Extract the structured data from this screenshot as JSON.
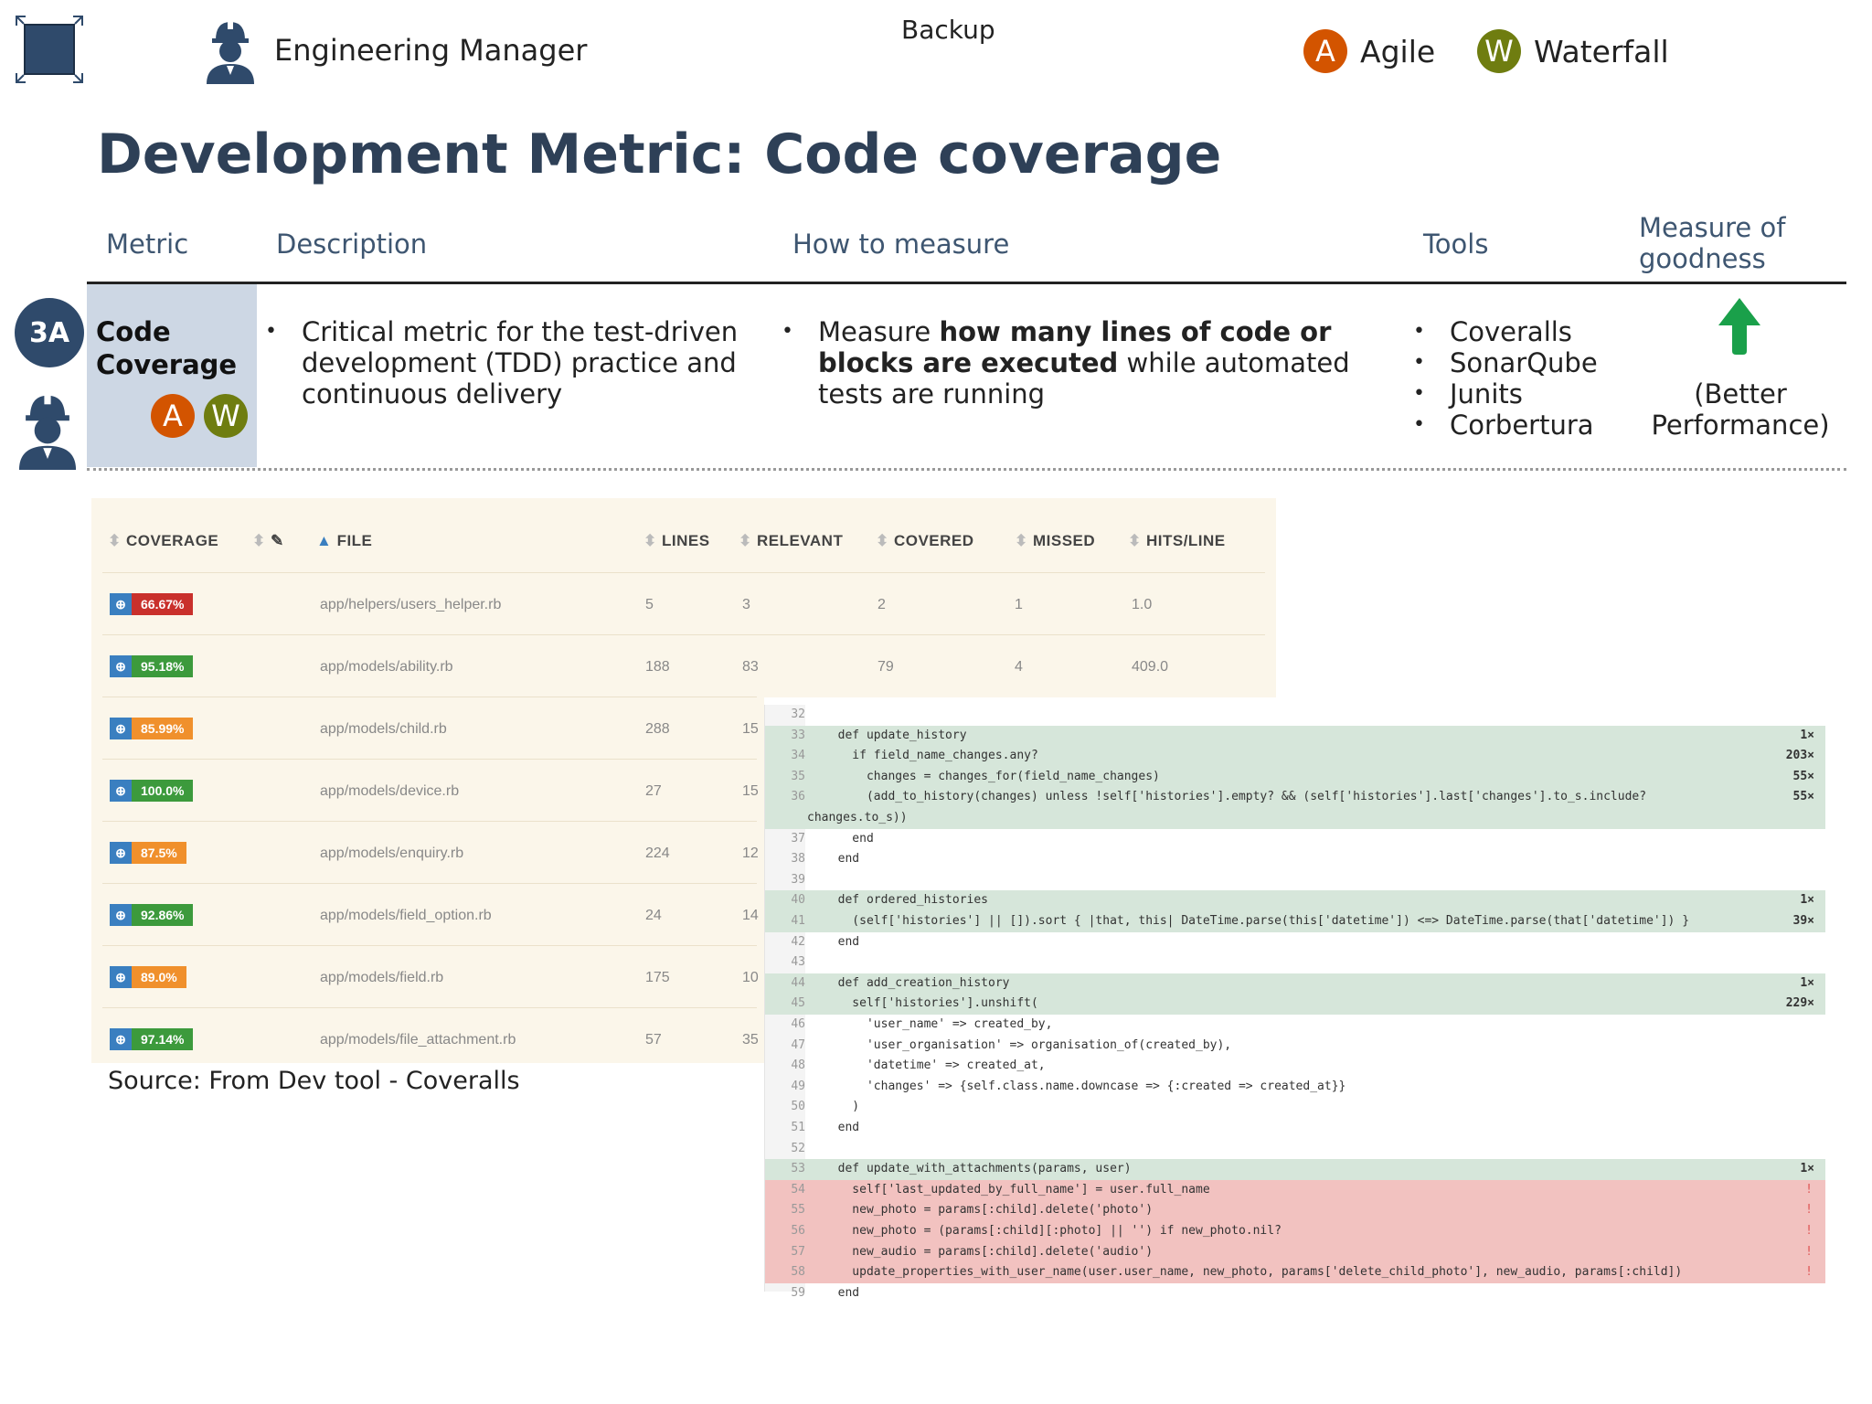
{
  "header": {
    "role": "Engineering Manager",
    "backup": "Backup",
    "legend": [
      {
        "letter": "A",
        "label": "Agile",
        "color": "#d35400"
      },
      {
        "letter": "W",
        "label": "Waterfall",
        "color": "#6f7d10"
      }
    ]
  },
  "title": "Development Metric: Code coverage",
  "table": {
    "headers": {
      "metric": "Metric",
      "description": "Description",
      "how": "How to measure",
      "tools": "Tools",
      "goodness": "Measure of goodness"
    },
    "row": {
      "id": "3A",
      "metric": "Code Coverage",
      "badges": [
        "A",
        "W"
      ],
      "description": "Critical metric for the test-driven development (TDD) practice and continuous delivery",
      "how_pre": "Measure ",
      "how_bold": "how many lines of code or blocks are executed",
      "how_post": " while automated tests are running",
      "tools": [
        "Coveralls",
        "SonarQube",
        "Junits",
        "Corbertura"
      ],
      "goodness_note": "(Better Performance)",
      "goodness_arrow_color": "#1aa04a"
    }
  },
  "coverage": {
    "columns": [
      "COVERAGE",
      "FILE",
      "LINES",
      "RELEVANT",
      "COVERED",
      "MISSED",
      "HITS/LINE"
    ],
    "rows": [
      {
        "pct": "66.67%",
        "color": "#c9302c",
        "file": "app/helpers/users_helper.rb",
        "lines": "5",
        "relevant": "3",
        "covered": "2",
        "missed": "1",
        "hits": "1.0"
      },
      {
        "pct": "95.18%",
        "color": "#3c9a3c",
        "file": "app/models/ability.rb",
        "lines": "188",
        "relevant": "83",
        "covered": "79",
        "missed": "4",
        "hits": "409.0"
      },
      {
        "pct": "85.99%",
        "color": "#f0902c",
        "file": "app/models/child.rb",
        "lines": "288",
        "relevant": "15"
      },
      {
        "pct": "100.0%",
        "color": "#3c9a3c",
        "file": "app/models/device.rb",
        "lines": "27",
        "relevant": "15"
      },
      {
        "pct": "87.5%",
        "color": "#f0902c",
        "file": "app/models/enquiry.rb",
        "lines": "224",
        "relevant": "12"
      },
      {
        "pct": "92.86%",
        "color": "#3c9a3c",
        "file": "app/models/field_option.rb",
        "lines": "24",
        "relevant": "14"
      },
      {
        "pct": "89.0%",
        "color": "#f0902c",
        "file": "app/models/field.rb",
        "lines": "175",
        "relevant": "10"
      },
      {
        "pct": "97.14%",
        "color": "#3c9a3c",
        "file": "app/models/file_attachment.rb",
        "lines": "57",
        "relevant": "35"
      }
    ]
  },
  "source": "Source: From Dev tool - Coveralls",
  "code": [
    {
      "n": "32",
      "t": "",
      "s": "none",
      "h": ""
    },
    {
      "n": "33",
      "t": "  def update_history",
      "s": "cov",
      "h": "1×"
    },
    {
      "n": "34",
      "t": "    if field_name_changes.any?",
      "s": "cov",
      "h": "203×"
    },
    {
      "n": "35",
      "t": "      changes = changes_for(field_name_changes)",
      "s": "cov",
      "h": "55×"
    },
    {
      "n": "36",
      "t": "      (add_to_history(changes) unless !self['histories'].empty? && (self['histories'].last['changes'].to_s.include?",
      "s": "cov",
      "h": "55×"
    },
    {
      "n": "",
      "t": "changes.to_s))",
      "s": "cov",
      "h": ""
    },
    {
      "n": "37",
      "t": "    end",
      "s": "none",
      "h": ""
    },
    {
      "n": "38",
      "t": "  end",
      "s": "none",
      "h": ""
    },
    {
      "n": "39",
      "t": "",
      "s": "none",
      "h": ""
    },
    {
      "n": "40",
      "t": "  def ordered_histories",
      "s": "cov",
      "h": "1×"
    },
    {
      "n": "41",
      "t": "    (self['histories'] || []).sort { |that, this| DateTime.parse(this['datetime']) <=> DateTime.parse(that['datetime']) }",
      "s": "cov",
      "h": "39×"
    },
    {
      "n": "42",
      "t": "  end",
      "s": "none",
      "h": ""
    },
    {
      "n": "43",
      "t": "",
      "s": "none",
      "h": ""
    },
    {
      "n": "44",
      "t": "  def add_creation_history",
      "s": "cov",
      "h": "1×"
    },
    {
      "n": "45",
      "t": "    self['histories'].unshift(",
      "s": "cov",
      "h": "229×"
    },
    {
      "n": "46",
      "t": "      'user_name' => created_by,",
      "s": "none",
      "h": ""
    },
    {
      "n": "47",
      "t": "      'user_organisation' => organisation_of(created_by),",
      "s": "none",
      "h": ""
    },
    {
      "n": "48",
      "t": "      'datetime' => created_at,",
      "s": "none",
      "h": ""
    },
    {
      "n": "49",
      "t": "      'changes' => {self.class.name.downcase => {:created => created_at}}",
      "s": "none",
      "h": ""
    },
    {
      "n": "50",
      "t": "    )",
      "s": "none",
      "h": ""
    },
    {
      "n": "51",
      "t": "  end",
      "s": "none",
      "h": ""
    },
    {
      "n": "52",
      "t": "",
      "s": "none",
      "h": ""
    },
    {
      "n": "53",
      "t": "  def update_with_attachments(params, user)",
      "s": "cov",
      "h": "1×"
    },
    {
      "n": "54",
      "t": "    self['last_updated_by_full_name'] = user.full_name",
      "s": "miss",
      "h": "!"
    },
    {
      "n": "55",
      "t": "    new_photo = params[:child].delete('photo')",
      "s": "miss",
      "h": "!"
    },
    {
      "n": "56",
      "t": "    new_photo = (params[:child][:photo] || '') if new_photo.nil?",
      "s": "miss",
      "h": "!"
    },
    {
      "n": "57",
      "t": "    new_audio = params[:child].delete('audio')",
      "s": "miss",
      "h": "!"
    },
    {
      "n": "58",
      "t": "    update_properties_with_user_name(user.user_name, new_photo, params['delete_child_photo'], new_audio, params[:child])",
      "s": "miss",
      "h": "!"
    },
    {
      "n": "59",
      "t": "  end",
      "s": "none",
      "h": ""
    }
  ]
}
